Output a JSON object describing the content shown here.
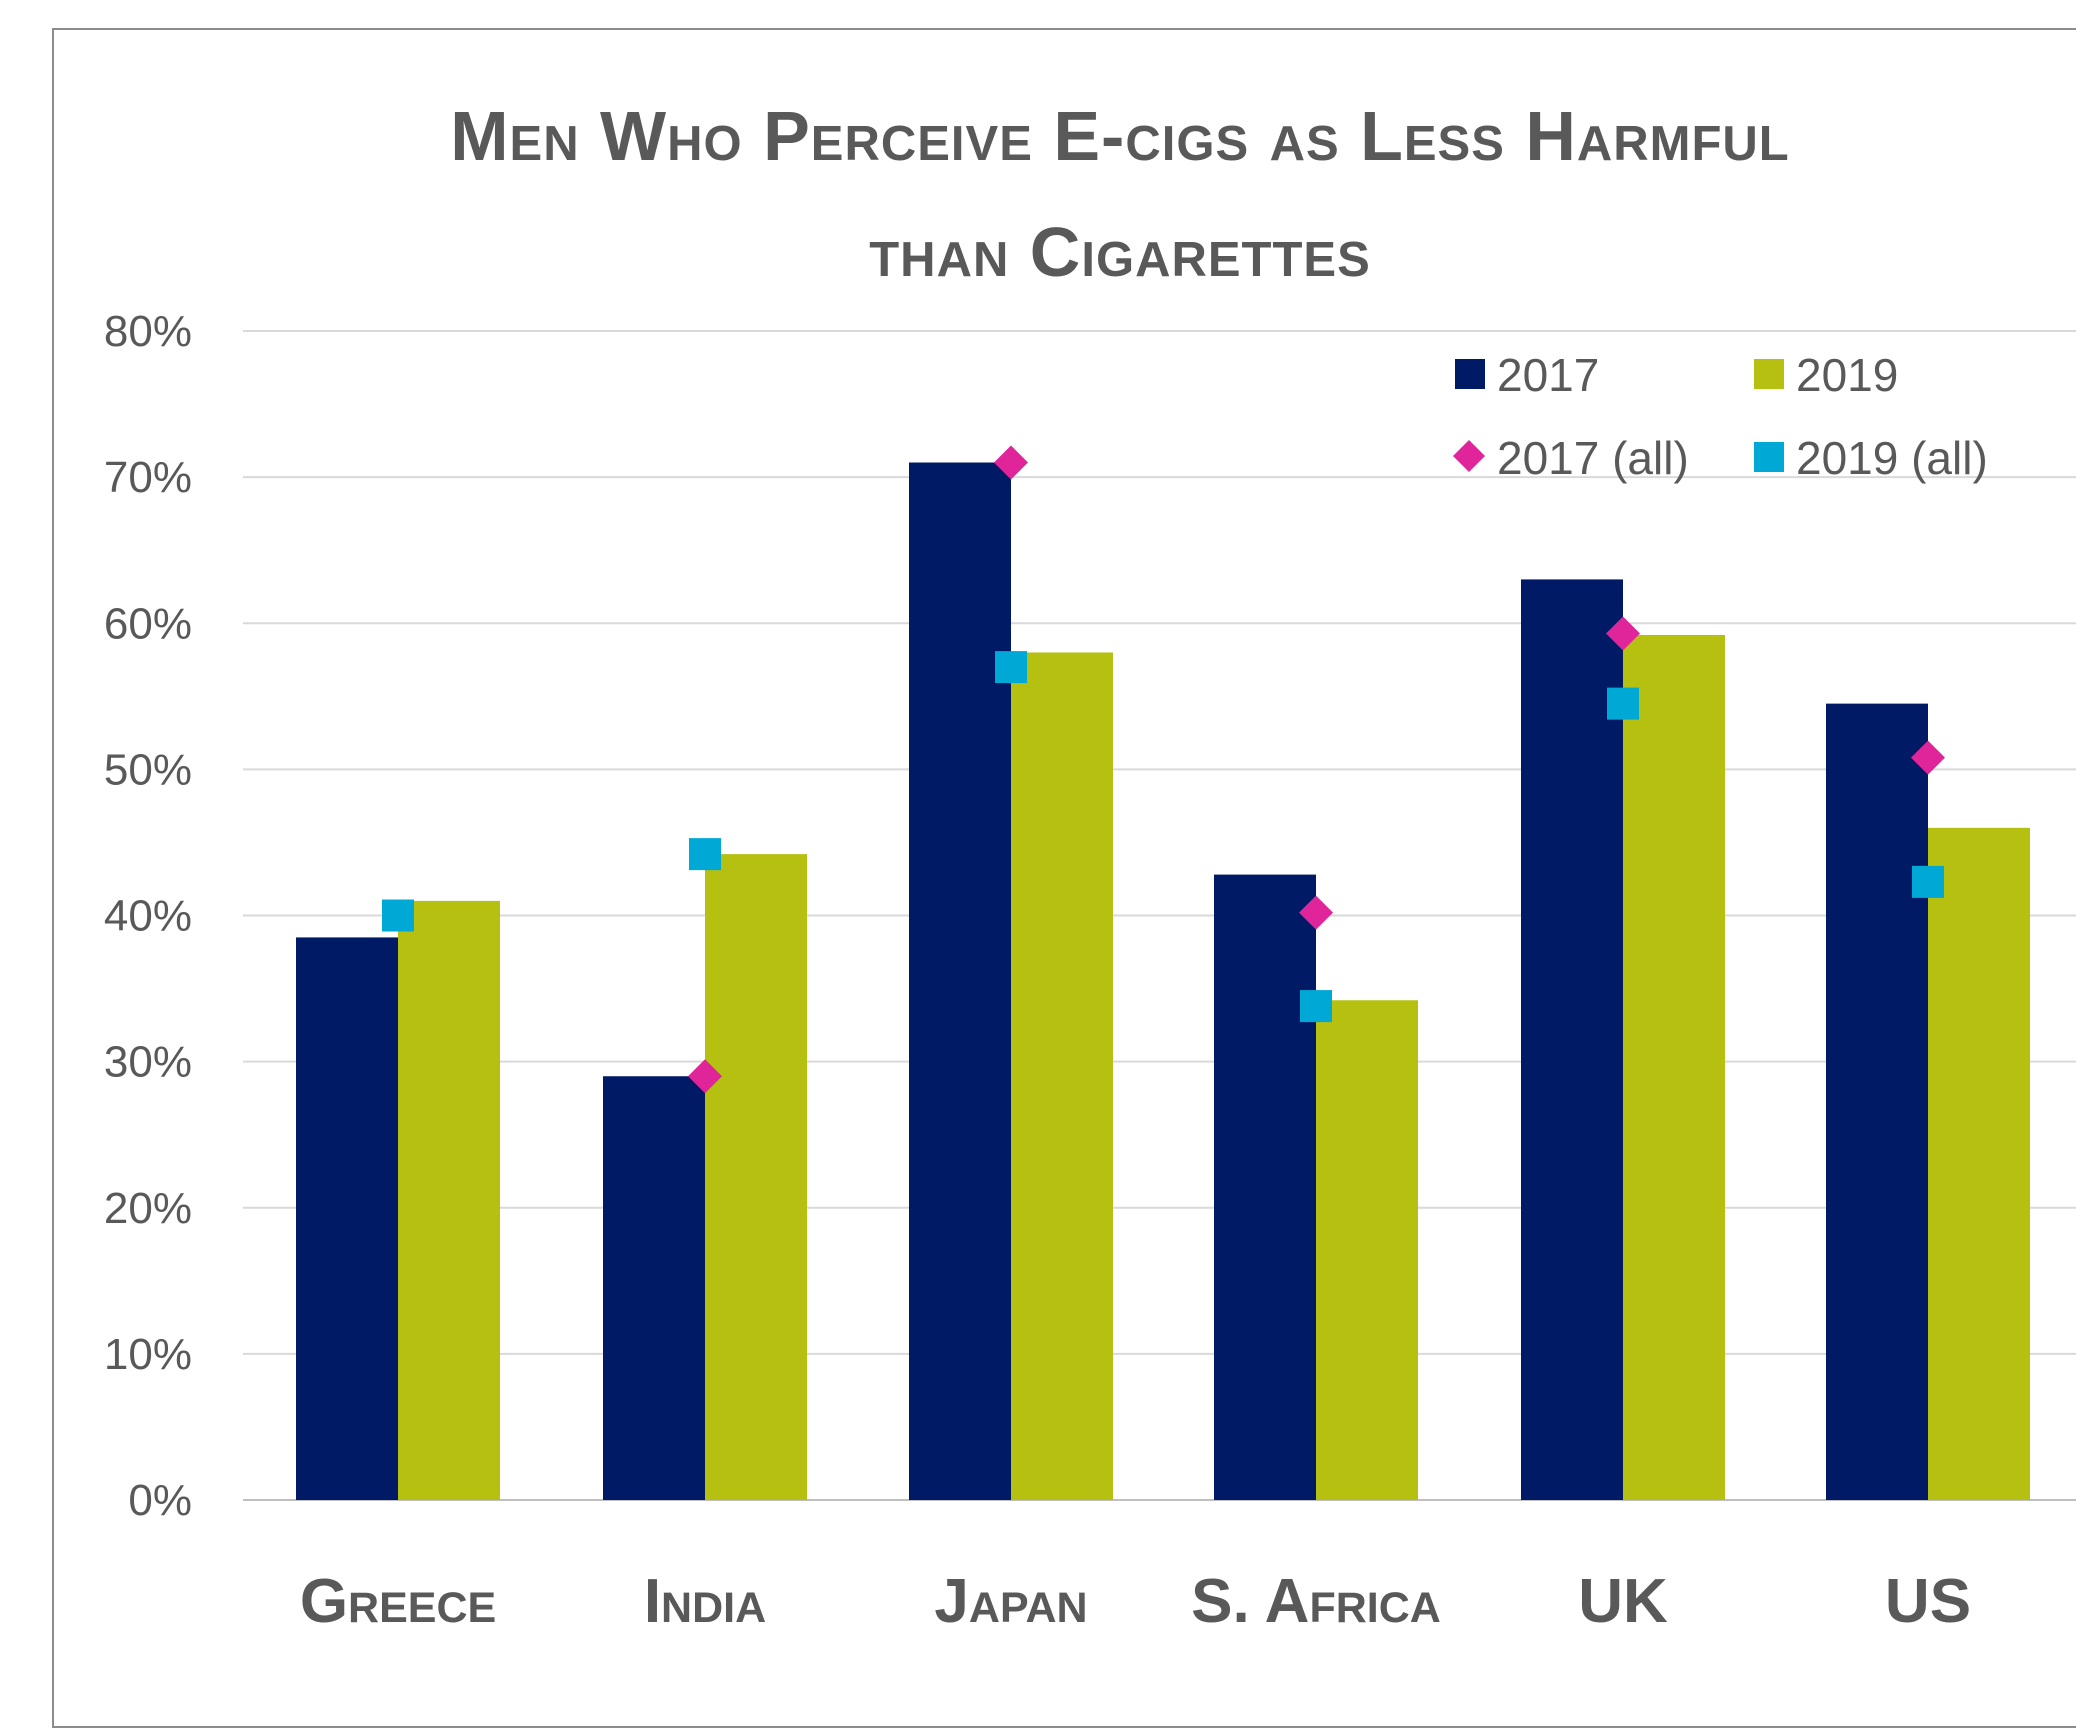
{
  "chart_data": {
    "type": "bar",
    "title_line1": "Men Who Perceive E-cigs as Less Harmful",
    "title_line2": "than Cigarettes",
    "categories": [
      "Greece",
      "India",
      "Japan",
      "S. Africa",
      "UK",
      "US"
    ],
    "series": [
      {
        "name": "2017",
        "kind": "bar",
        "color": "#001a66",
        "values": [
          38.5,
          29.0,
          71.0,
          42.8,
          63.0,
          54.5
        ]
      },
      {
        "name": "2019",
        "kind": "bar",
        "color": "#b5c010",
        "values": [
          41.0,
          44.2,
          58.0,
          34.2,
          59.2,
          46.0
        ]
      },
      {
        "name": "2017 (all)",
        "kind": "marker",
        "shape": "diamond",
        "color": "#e0249a",
        "values": [
          null,
          29.0,
          71.0,
          40.2,
          59.3,
          50.8
        ]
      },
      {
        "name": "2019 (all)",
        "kind": "marker",
        "shape": "square",
        "color": "#00a8d6",
        "values": [
          40.0,
          44.2,
          57.0,
          33.8,
          54.5,
          42.3
        ]
      }
    ],
    "yticks": [
      "0%",
      "10%",
      "20%",
      "30%",
      "40%",
      "50%",
      "60%",
      "70%",
      "80%"
    ],
    "ylim": [
      0,
      80
    ],
    "grid": true,
    "legend_position": "top-right"
  }
}
